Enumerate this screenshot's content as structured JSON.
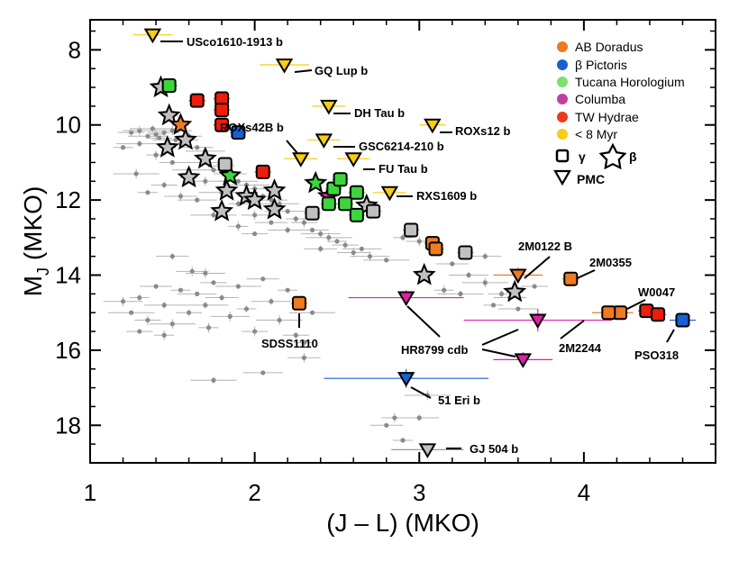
{
  "chart_data": {
    "type": "scatter",
    "title": "",
    "xlabel": "(J – L) (MKO)",
    "ylabel_main": "M",
    "ylabel_sub": "J",
    "ylabel_rest": " (MKO)",
    "xlim": [
      1.0,
      4.8
    ],
    "ylim": [
      19.0,
      7.2
    ],
    "y_inverted": true,
    "xticks": [
      1,
      2,
      3,
      4
    ],
    "yticks": [
      8,
      10,
      12,
      14,
      16,
      18
    ],
    "colors": {
      "AB Doradus": "#ee7a22",
      "beta Pictoris": "#1a5fd1",
      "Tucana Horologium": "#3cd63c",
      "Columba": "#e020a8",
      "TW Hydrae": "#ee1c0c",
      "young": "#f7cd16",
      "field": "#8a8a8a",
      "gray_marker": "#c0c0c0"
    },
    "legend": {
      "position": "top-right",
      "groups": [
        {
          "label": "AB Doradus",
          "color_key": "AB Doradus"
        },
        {
          "label": "β Pictoris",
          "color_key": "beta Pictoris"
        },
        {
          "label": "Tucana Horologium",
          "color_key": "Tucana Horologium"
        },
        {
          "label": "Columba",
          "color_key": "Columba"
        },
        {
          "label": "TW Hydrae",
          "color_key": "TW Hydrae"
        },
        {
          "label": "< 8 Myr",
          "color_key": "young"
        }
      ],
      "shape_gamma": "γ",
      "shape_beta": "β",
      "shape_pmc": "PMC"
    },
    "labeled_objects": [
      {
        "name": "USco1610-1913 b",
        "x": 1.38,
        "y": 7.6,
        "marker": "tri",
        "color_key": "young",
        "xerr": 0.12,
        "yerr": 0.15
      },
      {
        "name": "GQ Lup b",
        "x": 2.18,
        "y": 8.4,
        "marker": "tri",
        "color_key": "young",
        "xerr": 0.15,
        "yerr": 0.15
      },
      {
        "name": "DH Tau b",
        "x": 2.45,
        "y": 9.5,
        "marker": "tri",
        "color_key": "young",
        "xerr": 0.1,
        "yerr": 0.15
      },
      {
        "name": "ROXs12 b",
        "x": 3.08,
        "y": 10.0,
        "marker": "tri",
        "color_key": "young",
        "xerr": 0.08,
        "yerr": 0.15
      },
      {
        "name": "ROXs42B b",
        "x": 2.28,
        "y": 10.9,
        "marker": "tri",
        "color_key": "young",
        "xerr": 0.1,
        "yerr": 0.2
      },
      {
        "name": "GSC6214-210 b",
        "x": 2.42,
        "y": 10.4,
        "marker": "tri",
        "color_key": "young",
        "xerr": 0.1,
        "yerr": 0.2
      },
      {
        "name": "FU Tau b",
        "x": 2.6,
        "y": 10.9,
        "marker": "tri",
        "color_key": "young",
        "xerr": 0.1,
        "yerr": 0.15
      },
      {
        "name": "RXS1609 b",
        "x": 2.82,
        "y": 11.8,
        "marker": "tri",
        "color_key": "young",
        "xerr": 0.1,
        "yerr": 0.15
      },
      {
        "name": "2M0122 B",
        "x": 3.6,
        "y": 14.0,
        "marker": "tri",
        "color_key": "AB Doradus",
        "xerr": 0.15,
        "yerr": 0.2
      },
      {
        "name": "2M0355",
        "x": 3.92,
        "y": 14.1,
        "marker": "sq",
        "color_key": "AB Doradus",
        "xerr": 0.05,
        "yerr": 0.1
      },
      {
        "name": "W0047",
        "x": 4.22,
        "y": 15.0,
        "marker": "sq",
        "color_key": "AB Doradus",
        "xerr": 0.08,
        "yerr": 0.1
      },
      {
        "name": "2M2244",
        "x": 4.15,
        "y": 15.0,
        "marker": "sq",
        "color_key": "AB Doradus",
        "xerr": 0.1,
        "yerr": 0.15
      },
      {
        "name": "PSO318",
        "x": 4.6,
        "y": 15.2,
        "marker": "sq",
        "color_key": "beta Pictoris",
        "xerr": 0.08,
        "yerr": 0.1
      },
      {
        "name": "SDSS1110",
        "x": 2.27,
        "y": 14.75,
        "marker": "sq",
        "color_key": "AB Doradus",
        "xerr": 0.05,
        "yerr": 0.05
      },
      {
        "name": "HR8799 cdb",
        "x": 2.92,
        "y": 14.6,
        "marker": "tri",
        "color_key": "Columba",
        "xerr": 0.35,
        "yerr": 0.2
      },
      {
        "name": "51 Eri b",
        "x": 2.92,
        "y": 16.75,
        "marker": "tri",
        "color_key": "beta Pictoris",
        "xerr": 0.5,
        "yerr": 0.25
      },
      {
        "name": "GJ 504 b",
        "x": 3.05,
        "y": 18.65,
        "marker": "tri",
        "color_key": "gray_marker",
        "xerr": 0.22,
        "yerr": 0.15
      }
    ],
    "hr8799_extra": [
      {
        "x": 3.72,
        "y": 15.2,
        "xerr": 0.45,
        "yerr": 0.3
      },
      {
        "x": 3.63,
        "y": 16.25,
        "xerr": 0.18,
        "yerr": 0.2
      }
    ],
    "gamma_squares": [
      {
        "x": 1.48,
        "y": 8.95,
        "c": "Tucana Horologium"
      },
      {
        "x": 1.65,
        "y": 9.35,
        "c": "TW Hydrae"
      },
      {
        "x": 1.8,
        "y": 9.3,
        "c": "TW Hydrae"
      },
      {
        "x": 1.8,
        "y": 9.6,
        "c": "TW Hydrae"
      },
      {
        "x": 1.8,
        "y": 10.0,
        "c": "TW Hydrae"
      },
      {
        "x": 1.9,
        "y": 10.2,
        "c": "beta Pictoris"
      },
      {
        "x": 1.82,
        "y": 11.05,
        "c": "gray_marker"
      },
      {
        "x": 2.05,
        "y": 11.25,
        "c": "TW Hydrae"
      },
      {
        "x": 2.35,
        "y": 12.35,
        "c": "gray_marker"
      },
      {
        "x": 2.48,
        "y": 11.7,
        "c": "Tucana Horologium"
      },
      {
        "x": 2.52,
        "y": 11.45,
        "c": "Tucana Horologium"
      },
      {
        "x": 2.55,
        "y": 12.1,
        "c": "Tucana Horologium"
      },
      {
        "x": 2.62,
        "y": 11.8,
        "c": "Tucana Horologium"
      },
      {
        "x": 2.62,
        "y": 12.4,
        "c": "Tucana Horologium"
      },
      {
        "x": 2.45,
        "y": 12.1,
        "c": "Tucana Horologium"
      },
      {
        "x": 2.72,
        "y": 12.3,
        "c": "gray_marker"
      },
      {
        "x": 2.95,
        "y": 12.8,
        "c": "gray_marker"
      },
      {
        "x": 3.08,
        "y": 13.15,
        "c": "AB Doradus"
      },
      {
        "x": 3.1,
        "y": 13.3,
        "c": "AB Doradus"
      },
      {
        "x": 3.28,
        "y": 13.4,
        "c": "gray_marker"
      },
      {
        "x": 4.38,
        "y": 14.95,
        "c": "TW Hydrae"
      },
      {
        "x": 4.45,
        "y": 15.05,
        "c": "TW Hydrae"
      }
    ],
    "beta_stars": [
      {
        "x": 1.43,
        "y": 9.0,
        "c": "gray_marker"
      },
      {
        "x": 1.48,
        "y": 9.75,
        "c": "gray_marker"
      },
      {
        "x": 1.55,
        "y": 10.0,
        "c": "AB Doradus"
      },
      {
        "x": 1.58,
        "y": 10.4,
        "c": "gray_marker"
      },
      {
        "x": 1.47,
        "y": 10.6,
        "c": "gray_marker"
      },
      {
        "x": 1.7,
        "y": 10.9,
        "c": "gray_marker"
      },
      {
        "x": 1.6,
        "y": 11.4,
        "c": "gray_marker"
      },
      {
        "x": 1.85,
        "y": 11.35,
        "c": "Tucana Horologium"
      },
      {
        "x": 1.83,
        "y": 11.75,
        "c": "gray_marker"
      },
      {
        "x": 1.95,
        "y": 11.9,
        "c": "gray_marker"
      },
      {
        "x": 2.0,
        "y": 12.0,
        "c": "gray_marker"
      },
      {
        "x": 1.8,
        "y": 12.3,
        "c": "gray_marker"
      },
      {
        "x": 2.12,
        "y": 11.75,
        "c": "gray_marker"
      },
      {
        "x": 2.12,
        "y": 12.25,
        "c": "gray_marker"
      },
      {
        "x": 2.37,
        "y": 11.55,
        "c": "Tucana Horologium"
      },
      {
        "x": 2.45,
        "y": 11.9,
        "c": "Columba"
      },
      {
        "x": 2.68,
        "y": 12.15,
        "c": "gray_marker"
      },
      {
        "x": 3.03,
        "y": 14.0,
        "c": "gray_marker"
      },
      {
        "x": 3.58,
        "y": 14.45,
        "c": "gray_marker"
      }
    ],
    "field_points": [
      [
        1.2,
        10.6
      ],
      [
        1.25,
        10.2
      ],
      [
        1.3,
        10.15
      ],
      [
        1.35,
        10.3
      ],
      [
        1.38,
        10.1
      ],
      [
        1.4,
        10.25
      ],
      [
        1.42,
        10.35
      ],
      [
        1.45,
        10.2
      ],
      [
        1.5,
        10.15
      ],
      [
        1.52,
        10.4
      ],
      [
        1.55,
        10.5
      ],
      [
        1.6,
        10.3
      ],
      [
        1.65,
        10.6
      ],
      [
        1.7,
        10.7
      ],
      [
        1.72,
        11.0
      ],
      [
        1.75,
        11.2
      ],
      [
        1.8,
        11.1
      ],
      [
        1.85,
        11.3
      ],
      [
        1.9,
        11.5
      ],
      [
        1.95,
        11.6
      ],
      [
        2.0,
        11.7
      ],
      [
        2.05,
        11.9
      ],
      [
        2.1,
        12.0
      ],
      [
        2.15,
        12.1
      ],
      [
        2.2,
        12.3
      ],
      [
        2.25,
        12.5
      ],
      [
        2.3,
        12.6
      ],
      [
        2.35,
        12.8
      ],
      [
        2.4,
        12.9
      ],
      [
        2.45,
        13.0
      ],
      [
        2.5,
        13.1
      ],
      [
        2.55,
        13.2
      ],
      [
        2.6,
        13.4
      ],
      [
        2.65,
        13.3
      ],
      [
        1.3,
        10.5
      ],
      [
        1.4,
        10.8
      ],
      [
        1.5,
        11.0
      ],
      [
        1.6,
        11.2
      ],
      [
        1.7,
        11.5
      ],
      [
        1.8,
        11.8
      ],
      [
        1.9,
        12.1
      ],
      [
        2.0,
        12.4
      ],
      [
        2.1,
        12.6
      ],
      [
        2.2,
        12.8
      ],
      [
        1.28,
        11.3
      ],
      [
        1.35,
        11.8
      ],
      [
        1.45,
        11.6
      ],
      [
        1.55,
        11.9
      ],
      [
        1.65,
        12.0
      ],
      [
        1.75,
        12.4
      ],
      [
        1.9,
        12.7
      ],
      [
        2.0,
        12.9
      ],
      [
        2.4,
        13.3
      ],
      [
        2.7,
        13.5
      ],
      [
        2.8,
        13.6
      ],
      [
        2.9,
        13.0
      ],
      [
        3.0,
        13.1
      ],
      [
        3.2,
        13.7
      ],
      [
        3.3,
        14.0
      ],
      [
        3.4,
        14.2
      ],
      [
        3.45,
        14.8
      ],
      [
        3.5,
        14.5
      ],
      [
        3.55,
        14.6
      ],
      [
        3.6,
        14.9
      ],
      [
        3.25,
        14.5
      ],
      [
        3.15,
        14.4
      ],
      [
        3.7,
        14.3
      ],
      [
        3.4,
        13.5
      ],
      [
        1.2,
        14.7
      ],
      [
        1.25,
        15.0
      ],
      [
        1.3,
        14.6
      ],
      [
        1.35,
        15.2
      ],
      [
        1.4,
        14.3
      ],
      [
        1.45,
        14.8
      ],
      [
        1.5,
        15.3
      ],
      [
        1.55,
        14.4
      ],
      [
        1.6,
        15.0
      ],
      [
        1.62,
        13.9
      ],
      [
        1.65,
        14.5
      ],
      [
        1.7,
        14.8
      ],
      [
        1.72,
        15.4
      ],
      [
        1.75,
        14.2
      ],
      [
        1.8,
        14.6
      ],
      [
        1.85,
        15.1
      ],
      [
        1.9,
        14.3
      ],
      [
        1.95,
        14.9
      ],
      [
        2.0,
        15.5
      ],
      [
        2.05,
        14.1
      ],
      [
        2.1,
        14.7
      ],
      [
        2.15,
        15.2
      ],
      [
        2.2,
        14.4
      ],
      [
        2.25,
        15.6
      ],
      [
        2.3,
        16.2
      ],
      [
        2.05,
        16.6
      ],
      [
        1.75,
        16.8
      ],
      [
        1.45,
        15.6
      ],
      [
        1.3,
        15.5
      ],
      [
        1.5,
        13.5
      ],
      [
        1.7,
        13.95
      ],
      [
        2.35,
        15.0
      ],
      [
        2.3,
        15.8
      ],
      [
        2.85,
        17.8
      ],
      [
        2.8,
        18.0
      ],
      [
        3.0,
        17.8
      ],
      [
        3.05,
        17.2
      ],
      [
        2.9,
        18.4
      ]
    ]
  }
}
